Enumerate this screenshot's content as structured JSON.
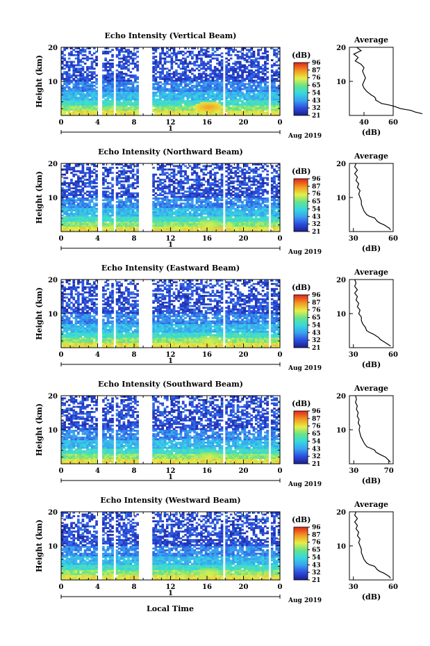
{
  "figure": {
    "xlabel": "Local Time",
    "date_label": "Aug 2019",
    "colorbar_unit": "(dB)",
    "colorbar_ticks": [
      "96",
      "87",
      "76",
      "65",
      "54",
      "43",
      "32",
      "21"
    ],
    "height_label": "Height (km)",
    "average_title": "Average",
    "average_unit": "(dB)"
  },
  "chart_data": [
    {
      "type": "heatmap",
      "title": "Echo Intensity (Vertical Beam)",
      "ylabel": "Height (km)",
      "xlabel": "Local Time",
      "x_ticks": [
        "0",
        "4",
        "8",
        "12",
        "16",
        "20",
        "0"
      ],
      "x_range": [
        0,
        24
      ],
      "day_labels": [
        "1"
      ],
      "date_label": "Aug 2019",
      "y_ticks": [
        "10",
        "20"
      ],
      "y_range": [
        0,
        20
      ],
      "colorbar": {
        "unit": "(dB)",
        "range": [
          21,
          96
        ],
        "ticks": [
          96,
          87,
          76,
          65,
          54,
          43,
          32,
          21
        ]
      },
      "data_gaps_hours": [
        [
          4.1,
          4.5
        ],
        [
          5.7,
          6.1
        ],
        [
          8.6,
          10.0
        ],
        [
          17.7,
          18.0
        ],
        [
          22.7,
          23.1
        ]
      ],
      "enhancement": {
        "x_center_hours": 16.2,
        "height_km": 2.5,
        "value_db": 87
      },
      "profile_points": [
        {
          "height": 0.5,
          "value": 80
        },
        {
          "height": 1.0,
          "value": 75
        },
        {
          "height": 1.5,
          "value": 72
        },
        {
          "height": 2.0,
          "value": 65
        },
        {
          "height": 2.5,
          "value": 62
        },
        {
          "height": 3.0,
          "value": 58
        },
        {
          "height": 3.5,
          "value": 52
        },
        {
          "height": 4.0,
          "value": 50
        },
        {
          "height": 4.5,
          "value": 48
        },
        {
          "height": 5.0,
          "value": 48
        },
        {
          "height": 5.5,
          "value": 47
        },
        {
          "height": 6.0,
          "value": 45
        },
        {
          "height": 7.0,
          "value": 42
        },
        {
          "height": 8.0,
          "value": 40
        },
        {
          "height": 9.0,
          "value": 39
        },
        {
          "height": 10.0,
          "value": 40
        },
        {
          "height": 11.0,
          "value": 41
        },
        {
          "height": 12.0,
          "value": 40
        },
        {
          "height": 13.0,
          "value": 39
        },
        {
          "height": 14.0,
          "value": 40
        },
        {
          "height": 15.0,
          "value": 38
        },
        {
          "height": 16.0,
          "value": 34
        },
        {
          "height": 17.0,
          "value": 36
        },
        {
          "height": 18.0,
          "value": 33
        },
        {
          "height": 19.0,
          "value": 38
        },
        {
          "height": 20.0,
          "value": 35
        }
      ],
      "profile_xlim": [
        30,
        60
      ],
      "profile_xticks": [
        "40",
        "60"
      ],
      "profile_title": "Average",
      "profile_xlabel": "(dB)"
    },
    {
      "type": "heatmap",
      "title": "Echo Intensity (Northward Beam)",
      "ylabel": "Height (km)",
      "xlabel": "Local Time",
      "x_ticks": [
        "0",
        "4",
        "8",
        "12",
        "16",
        "20",
        "0"
      ],
      "x_range": [
        0,
        24
      ],
      "day_labels": [
        "1"
      ],
      "date_label": "Aug 2019",
      "y_ticks": [
        "10",
        "20"
      ],
      "y_range": [
        0,
        20
      ],
      "colorbar": {
        "unit": "(dB)",
        "range": [
          21,
          96
        ],
        "ticks": [
          96,
          87,
          76,
          65,
          54,
          43,
          32,
          21
        ]
      },
      "data_gaps_hours": [
        [
          4.1,
          4.5
        ],
        [
          5.7,
          6.1
        ],
        [
          8.6,
          10.0
        ],
        [
          17.7,
          18.0
        ],
        [
          22.7,
          23.1
        ]
      ],
      "enhancement": {
        "x_center_hours": 16.2,
        "height_km": 2.0,
        "value_db": 76
      },
      "profile_points": [
        {
          "height": 0.5,
          "value": 58
        },
        {
          "height": 1.0,
          "value": 57
        },
        {
          "height": 1.5,
          "value": 55
        },
        {
          "height": 2.0,
          "value": 53
        },
        {
          "height": 2.5,
          "value": 50
        },
        {
          "height": 3.0,
          "value": 48
        },
        {
          "height": 3.5,
          "value": 47
        },
        {
          "height": 4.0,
          "value": 46
        },
        {
          "height": 4.5,
          "value": 42
        },
        {
          "height": 5.0,
          "value": 40
        },
        {
          "height": 6.0,
          "value": 38
        },
        {
          "height": 7.0,
          "value": 37
        },
        {
          "height": 8.0,
          "value": 36
        },
        {
          "height": 9.0,
          "value": 36
        },
        {
          "height": 10.0,
          "value": 35
        },
        {
          "height": 11.0,
          "value": 34
        },
        {
          "height": 12.0,
          "value": 35
        },
        {
          "height": 13.0,
          "value": 33
        },
        {
          "height": 14.0,
          "value": 34
        },
        {
          "height": 15.0,
          "value": 32
        },
        {
          "height": 16.0,
          "value": 33
        },
        {
          "height": 17.0,
          "value": 31
        },
        {
          "height": 18.0,
          "value": 33
        },
        {
          "height": 19.0,
          "value": 31
        },
        {
          "height": 20.0,
          "value": 32
        }
      ],
      "profile_xlim": [
        27,
        60
      ],
      "profile_xticks": [
        "30",
        "60"
      ],
      "profile_title": "Average",
      "profile_xlabel": "(dB)"
    },
    {
      "type": "heatmap",
      "title": "Echo Intensity (Eastward Beam)",
      "ylabel": "Height (km)",
      "xlabel": "Local Time",
      "x_ticks": [
        "0",
        "4",
        "8",
        "12",
        "16",
        "20",
        "0"
      ],
      "x_range": [
        0,
        24
      ],
      "day_labels": [
        "1"
      ],
      "date_label": "Aug 2019",
      "y_ticks": [
        "10",
        "20"
      ],
      "y_range": [
        0,
        20
      ],
      "colorbar": {
        "unit": "(dB)",
        "range": [
          21,
          96
        ],
        "ticks": [
          96,
          87,
          76,
          65,
          54,
          43,
          32,
          21
        ]
      },
      "data_gaps_hours": [
        [
          4.1,
          4.5
        ],
        [
          5.7,
          6.1
        ],
        [
          8.6,
          10.0
        ],
        [
          17.7,
          18.0
        ],
        [
          22.7,
          23.1
        ]
      ],
      "enhancement": {
        "x_center_hours": 16.2,
        "height_km": 2.0,
        "value_db": 76
      },
      "profile_points": [
        {
          "height": 0.5,
          "value": 58
        },
        {
          "height": 1.0,
          "value": 56
        },
        {
          "height": 1.5,
          "value": 54
        },
        {
          "height": 2.0,
          "value": 52
        },
        {
          "height": 2.5,
          "value": 50
        },
        {
          "height": 3.0,
          "value": 49
        },
        {
          "height": 3.5,
          "value": 47
        },
        {
          "height": 4.0,
          "value": 45
        },
        {
          "height": 4.5,
          "value": 42
        },
        {
          "height": 5.0,
          "value": 40
        },
        {
          "height": 6.0,
          "value": 39
        },
        {
          "height": 7.0,
          "value": 37
        },
        {
          "height": 8.0,
          "value": 36
        },
        {
          "height": 9.0,
          "value": 36
        },
        {
          "height": 10.0,
          "value": 34
        },
        {
          "height": 11.0,
          "value": 35
        },
        {
          "height": 12.0,
          "value": 33
        },
        {
          "height": 13.0,
          "value": 34
        },
        {
          "height": 14.0,
          "value": 32
        },
        {
          "height": 15.0,
          "value": 33
        },
        {
          "height": 16.0,
          "value": 31
        },
        {
          "height": 17.0,
          "value": 33
        },
        {
          "height": 18.0,
          "value": 31
        },
        {
          "height": 19.0,
          "value": 32
        },
        {
          "height": 20.0,
          "value": 31
        }
      ],
      "profile_xlim": [
        27,
        60
      ],
      "profile_xticks": [
        "30",
        "60"
      ],
      "profile_title": "Average",
      "profile_xlabel": "(dB)"
    },
    {
      "type": "heatmap",
      "title": "Echo Intensity (Southward Beam)",
      "ylabel": "Height (km)",
      "xlabel": "Local Time",
      "x_ticks": [
        "0",
        "4",
        "8",
        "12",
        "16",
        "20",
        "0"
      ],
      "x_range": [
        0,
        24
      ],
      "day_labels": [
        "1"
      ],
      "date_label": "Aug 2019",
      "y_ticks": [
        "10",
        "20"
      ],
      "y_range": [
        0,
        20
      ],
      "colorbar": {
        "unit": "(dB)",
        "range": [
          21,
          96
        ],
        "ticks": [
          96,
          87,
          76,
          65,
          54,
          43,
          32,
          21
        ]
      },
      "data_gaps_hours": [
        [
          4.1,
          4.5
        ],
        [
          5.7,
          6.1
        ],
        [
          8.6,
          10.0
        ],
        [
          17.7,
          18.0
        ],
        [
          22.7,
          23.1
        ]
      ],
      "enhancement": {
        "x_center_hours": 16.2,
        "height_km": 2.0,
        "value_db": 76
      },
      "profile_points": [
        {
          "height": 0.5,
          "value": 72
        },
        {
          "height": 1.0,
          "value": 70
        },
        {
          "height": 1.5,
          "value": 68
        },
        {
          "height": 2.0,
          "value": 66
        },
        {
          "height": 2.5,
          "value": 62
        },
        {
          "height": 3.0,
          "value": 58
        },
        {
          "height": 3.5,
          "value": 55
        },
        {
          "height": 4.0,
          "value": 54
        },
        {
          "height": 4.5,
          "value": 50
        },
        {
          "height": 5.0,
          "value": 45
        },
        {
          "height": 6.0,
          "value": 42
        },
        {
          "height": 7.0,
          "value": 40
        },
        {
          "height": 8.0,
          "value": 38
        },
        {
          "height": 9.0,
          "value": 37
        },
        {
          "height": 10.0,
          "value": 36
        },
        {
          "height": 11.0,
          "value": 37
        },
        {
          "height": 12.0,
          "value": 35
        },
        {
          "height": 13.0,
          "value": 36
        },
        {
          "height": 14.0,
          "value": 34
        },
        {
          "height": 15.0,
          "value": 35
        },
        {
          "height": 16.0,
          "value": 33
        },
        {
          "height": 17.0,
          "value": 34
        },
        {
          "height": 18.0,
          "value": 32
        },
        {
          "height": 19.0,
          "value": 33
        },
        {
          "height": 20.0,
          "value": 32
        }
      ],
      "profile_xlim": [
        25,
        75
      ],
      "profile_xticks": [
        "30",
        "70"
      ],
      "profile_title": "Average",
      "profile_xlabel": "(dB)"
    },
    {
      "type": "heatmap",
      "title": "Echo Intensity (Westward Beam)",
      "ylabel": "Height (km)",
      "xlabel": "Local Time",
      "x_ticks": [
        "0",
        "4",
        "8",
        "12",
        "16",
        "20",
        "0"
      ],
      "x_range": [
        0,
        24
      ],
      "day_labels": [
        "1"
      ],
      "date_label": "Aug 2019",
      "y_ticks": [
        "10",
        "20"
      ],
      "y_range": [
        0,
        20
      ],
      "colorbar": {
        "unit": "(dB)",
        "range": [
          21,
          96
        ],
        "ticks": [
          96,
          87,
          76,
          65,
          54,
          43,
          32,
          21
        ]
      },
      "data_gaps_hours": [
        [
          4.1,
          4.5
        ],
        [
          5.7,
          6.1
        ],
        [
          8.6,
          10.0
        ],
        [
          17.7,
          18.0
        ],
        [
          22.7,
          23.1
        ]
      ],
      "enhancement": {
        "x_center_hours": 16.2,
        "height_km": 2.0,
        "value_db": 76
      },
      "profile_points": [
        {
          "height": 0.5,
          "value": 58
        },
        {
          "height": 1.0,
          "value": 57
        },
        {
          "height": 1.5,
          "value": 55
        },
        {
          "height": 2.0,
          "value": 53
        },
        {
          "height": 2.5,
          "value": 50
        },
        {
          "height": 3.0,
          "value": 48
        },
        {
          "height": 3.5,
          "value": 47
        },
        {
          "height": 4.0,
          "value": 46
        },
        {
          "height": 4.5,
          "value": 42
        },
        {
          "height": 5.0,
          "value": 40
        },
        {
          "height": 6.0,
          "value": 38
        },
        {
          "height": 7.0,
          "value": 37
        },
        {
          "height": 8.0,
          "value": 36
        },
        {
          "height": 9.0,
          "value": 36
        },
        {
          "height": 10.0,
          "value": 35
        },
        {
          "height": 11.0,
          "value": 34
        },
        {
          "height": 12.0,
          "value": 35
        },
        {
          "height": 13.0,
          "value": 33
        },
        {
          "height": 14.0,
          "value": 34
        },
        {
          "height": 15.0,
          "value": 32
        },
        {
          "height": 16.0,
          "value": 33
        },
        {
          "height": 17.0,
          "value": 31
        },
        {
          "height": 18.0,
          "value": 33
        },
        {
          "height": 19.0,
          "value": 31
        },
        {
          "height": 20.0,
          "value": 32
        }
      ],
      "profile_xlim": [
        27,
        60
      ],
      "profile_xticks": [
        "30",
        "60"
      ],
      "profile_title": "Average",
      "profile_xlabel": "(dB)"
    }
  ]
}
